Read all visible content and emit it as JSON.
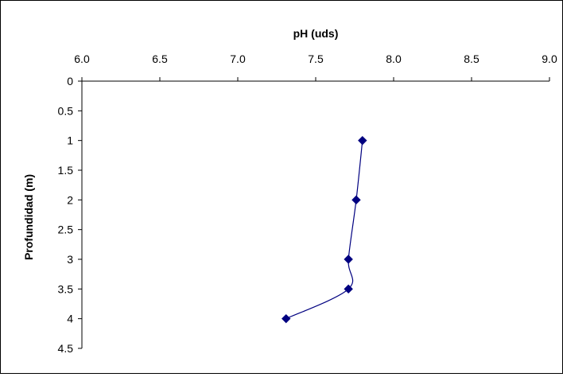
{
  "chart_data": {
    "type": "line",
    "title": "",
    "xlabel": "pH (uds)",
    "ylabel": "Profundidad (m)",
    "x_axis_position": "top",
    "y_axis_inverted": true,
    "xlim": [
      6.0,
      9.0
    ],
    "ylim": [
      0,
      4.5
    ],
    "x_ticks": [
      "6.0",
      "6.5",
      "7.0",
      "7.5",
      "8.0",
      "8.5",
      "9.0"
    ],
    "y_ticks": [
      "0",
      "0.5",
      "1",
      "1.5",
      "2",
      "2.5",
      "3",
      "3.5",
      "4",
      "4.5"
    ],
    "grid": false,
    "legend": "none",
    "series_color": "#000080",
    "series": [
      {
        "x": [
          7.8,
          7.76,
          7.71,
          7.71,
          7.31
        ],
        "y": [
          1,
          2,
          3,
          3.5,
          4
        ]
      }
    ]
  }
}
